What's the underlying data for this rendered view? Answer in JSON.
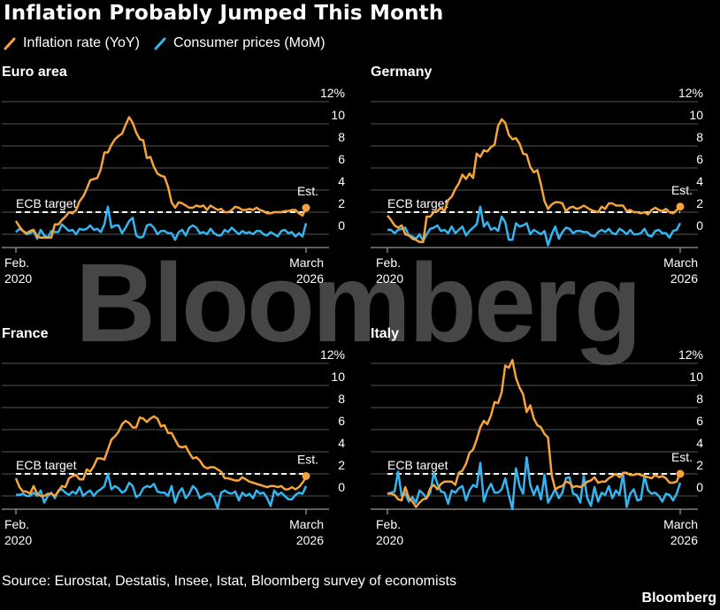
{
  "title": "Inflation Probably Jumped This Month",
  "legend": {
    "yoy": "Inflation rate (YoY)",
    "mom": "Consumer prices (MoM)"
  },
  "colors": {
    "yoy": "#f5a33a",
    "mom": "#35b5f0",
    "grid": "#555555",
    "target": "#ffffff"
  },
  "source": "Source: Eurostat, Destatis, Insee, Istat, Bloomberg survey of economists",
  "brand": "Bloomberg",
  "watermark": "Bloomberg",
  "chart_data": [
    {
      "type": "line",
      "title": "Euro area",
      "x_start_label": "Feb.\n2020",
      "x_end_label": "March\n2026",
      "ylim": [
        -2,
        12
      ],
      "yticks": [
        "12%",
        "10",
        "8",
        "6",
        "4",
        "2",
        "0"
      ],
      "target_label": "ECB target",
      "target_value": 2,
      "est_label": "Est.",
      "series": [
        {
          "name": "Inflation rate (YoY)",
          "values": [
            1.2,
            0.7,
            0.3,
            0.1,
            0.3,
            0.4,
            -0.2,
            -0.3,
            -0.3,
            -0.3,
            -0.3,
            0.9,
            0.9,
            1.3,
            1.6,
            2.0,
            1.9,
            2.2,
            3.0,
            3.4,
            4.1,
            4.9,
            5.0,
            5.1,
            5.9,
            7.4,
            7.4,
            8.1,
            8.6,
            8.9,
            9.1,
            9.9,
            10.6,
            10.1,
            9.2,
            8.6,
            8.5,
            6.9,
            7.0,
            6.1,
            5.5,
            5.3,
            5.2,
            4.3,
            2.9,
            2.4,
            2.9,
            2.8,
            2.6,
            2.4,
            2.4,
            2.6,
            2.5,
            2.6,
            2.2,
            2.6,
            2.4,
            2.2,
            2.3,
            2.0,
            2.0,
            2.2,
            2.5,
            2.4,
            2.2,
            2.2,
            2.3,
            2.2,
            2.4,
            2.2,
            2.1,
            1.9,
            1.9,
            2.0,
            2.0,
            2.0,
            2.1,
            2.1,
            2.2,
            2.2,
            1.9,
            1.7,
            2.4
          ]
        },
        {
          "name": "Consumer prices (MoM)",
          "values": [
            0.2,
            0.5,
            0.3,
            0.0,
            0.1,
            0.3,
            -0.4,
            0.4,
            -0.1,
            -0.3,
            0.3,
            0.2,
            0.2,
            0.9,
            0.6,
            0.3,
            0.4,
            0.0,
            0.5,
            0.4,
            0.5,
            0.8,
            0.4,
            0.5,
            0.2,
            0.9,
            2.5,
            0.6,
            0.8,
            0.8,
            0.1,
            0.6,
            1.2,
            1.5,
            -0.1,
            -0.3,
            -0.2,
            0.8,
            0.9,
            0.6,
            0.0,
            0.3,
            0.3,
            0.1,
            0.1,
            -0.5,
            0.2,
            0.4,
            -0.1,
            0.6,
            0.8,
            0.6,
            0.1,
            0.2,
            0.0,
            0.5,
            0.1,
            -0.1,
            -0.1,
            0.4,
            0.2,
            0.6,
            0.3,
            0.0,
            0.3,
            0.1,
            0.2,
            0.0,
            0.3,
            0.3,
            0.0,
            -0.1,
            0.2,
            0.0,
            -0.2,
            0.3,
            0.4,
            0.1,
            0.2,
            -0.2,
            0.1,
            -0.2,
            1.0
          ]
        }
      ],
      "est_value": 2.4
    },
    {
      "type": "line",
      "title": "Germany",
      "x_start_label": "Feb.\n2020",
      "x_end_label": "March\n2026",
      "ylim": [
        -2,
        12
      ],
      "yticks": [
        "12%",
        "10",
        "8",
        "6",
        "4",
        "2",
        "0"
      ],
      "target_label": "ECB target",
      "target_value": 2,
      "est_label": "Est.",
      "series": [
        {
          "name": "Inflation rate (YoY)",
          "values": [
            1.7,
            1.3,
            0.8,
            0.6,
            0.8,
            0.0,
            -0.1,
            -0.4,
            -0.5,
            -0.7,
            -0.7,
            1.6,
            1.6,
            2.0,
            2.1,
            2.4,
            2.1,
            3.1,
            3.4,
            4.1,
            4.6,
            5.4,
            5.0,
            5.5,
            5.1,
            7.3,
            7.0,
            7.6,
            7.5,
            7.9,
            8.1,
            9.8,
            10.4,
            10.1,
            9.0,
            8.6,
            8.7,
            8.2,
            7.3,
            7.2,
            6.1,
            5.6,
            5.8,
            4.5,
            3.0,
            2.3,
            2.7,
            2.9,
            2.9,
            2.8,
            2.1,
            2.4,
            2.5,
            2.3,
            2.4,
            2.6,
            2.4,
            2.2,
            2.1,
            2.0,
            2.5,
            2.3,
            2.8,
            2.8,
            2.6,
            2.6,
            2.6,
            2.1,
            2.2,
            2.0,
            2.0,
            1.9,
            2.0,
            1.8,
            2.2,
            2.4,
            2.2,
            2.1,
            2.3,
            2.0,
            1.9,
            2.2,
            2.3
          ]
        },
        {
          "name": "Consumer prices (MoM)",
          "values": [
            0.4,
            0.4,
            0.1,
            0.4,
            0.5,
            0.6,
            -0.1,
            -0.2,
            -0.4,
            0.0,
            -0.6,
            0.0,
            0.5,
            0.6,
            0.8,
            0.3,
            0.4,
            0.1,
            0.7,
            0.1,
            0.4,
            0.7,
            -0.1,
            0.3,
            0.6,
            0.9,
            2.5,
            0.7,
            1.1,
            0.4,
            0.6,
            0.3,
            1.6,
            1.1,
            -0.5,
            -0.5,
            1.0,
            0.7,
            0.8,
            1.0,
            0.0,
            0.4,
            0.2,
            0.0,
            0.3,
            -1.0,
            0.0,
            0.7,
            -0.4,
            0.2,
            0.6,
            0.5,
            0.1,
            0.3,
            0.3,
            0.2,
            0.2,
            -0.1,
            -0.2,
            0.2,
            0.4,
            0.2,
            0.5,
            0.1,
            0.0,
            0.5,
            0.3,
            0.0,
            0.4,
            0.0,
            0.0,
            0.1,
            0.5,
            -0.1,
            -0.2,
            0.3,
            0.4,
            0.1,
            0.1,
            -0.3,
            0.3,
            0.4,
            1.0
          ]
        }
      ],
      "est_value": 2.5
    },
    {
      "type": "line",
      "title": "France",
      "x_start_label": "Feb.\n2020",
      "x_end_label": "March\n2026",
      "ylim": [
        -2,
        12
      ],
      "yticks": [
        "12%",
        "10",
        "8",
        "6",
        "4",
        "2",
        "0"
      ],
      "target_label": "ECB target",
      "target_value": 2,
      "est_label": "Est.",
      "series": [
        {
          "name": "Inflation rate (YoY)",
          "values": [
            1.6,
            0.8,
            0.4,
            0.4,
            0.2,
            0.9,
            0.2,
            0.0,
            0.0,
            0.2,
            0.2,
            0.0,
            0.4,
            0.9,
            0.8,
            1.6,
            1.8,
            1.9,
            1.5,
            1.5,
            2.4,
            2.2,
            2.7,
            3.4,
            3.4,
            3.3,
            4.2,
            5.1,
            5.4,
            5.8,
            6.5,
            6.8,
            6.6,
            6.2,
            6.2,
            7.1,
            7.0,
            6.7,
            7.0,
            7.2,
            7.0,
            6.3,
            6.4,
            5.7,
            5.7,
            5.1,
            4.5,
            4.4,
            4.5,
            3.9,
            3.4,
            3.5,
            3.2,
            2.7,
            2.5,
            2.6,
            2.6,
            2.4,
            2.2,
            1.6,
            1.6,
            1.5,
            1.4,
            1.4,
            1.7,
            1.5,
            1.3,
            1.2,
            1.1,
            1.0,
            0.9,
            0.8,
            0.9,
            0.9,
            0.8,
            0.9,
            0.6,
            0.6,
            0.8,
            0.6,
            0.8,
            1.2,
            1.7
          ]
        },
        {
          "name": "Consumer prices (MoM)",
          "values": [
            0.1,
            0.1,
            0.2,
            0.0,
            0.0,
            0.3,
            0.0,
            0.5,
            -0.6,
            0.0,
            0.3,
            -0.2,
            0.5,
            0.6,
            0.3,
            0.1,
            0.4,
            0.2,
            0.8,
            0.0,
            0.3,
            0.5,
            0.0,
            0.4,
            0.6,
            0.9,
            2.0,
            0.6,
            0.9,
            0.7,
            0.3,
            0.5,
            1.2,
            0.9,
            -0.1,
            0.1,
            0.7,
            0.9,
            0.8,
            1.1,
            0.4,
            0.3,
            0.3,
            0.0,
            0.9,
            -0.6,
            0.3,
            0.7,
            -0.2,
            0.2,
            0.9,
            0.6,
            -0.2,
            0.0,
            0.2,
            0.2,
            -0.2,
            -1.1,
            0.3,
            0.5,
            0.3,
            0.2,
            0.4,
            -0.4,
            0.3,
            0.0,
            0.2,
            -0.2,
            0.5,
            0.2,
            0.3,
            -0.2,
            -0.9,
            0.5,
            0.1,
            0.3,
            0.0,
            -0.3,
            -0.3,
            0.1,
            0.3,
            0.2,
            0.9
          ]
        }
      ],
      "est_value": 1.8
    },
    {
      "type": "line",
      "title": "Italy",
      "x_start_label": "Feb.\n2020",
      "x_end_label": "March\n2026",
      "ylim": [
        -2,
        12
      ],
      "yticks": [
        "12%",
        "10",
        "8",
        "6",
        "4",
        "2",
        "0"
      ],
      "target_label": "ECB target",
      "target_value": 2,
      "est_label": "Est.",
      "series": [
        {
          "name": "Inflation rate (YoY)",
          "values": [
            0.2,
            0.2,
            0.1,
            -0.3,
            -0.4,
            0.8,
            -0.2,
            -0.5,
            -1.0,
            -0.6,
            -0.3,
            -0.2,
            0.7,
            1.0,
            0.6,
            1.1,
            1.3,
            1.3,
            1.3,
            1.0,
            2.1,
            2.3,
            2.9,
            3.9,
            4.2,
            5.1,
            6.2,
            6.8,
            6.5,
            7.3,
            8.5,
            8.4,
            9.4,
            11.8,
            11.6,
            12.3,
            10.7,
            9.8,
            9.2,
            7.6,
            8.2,
            7.0,
            6.4,
            6.2,
            5.6,
            5.3,
            1.9,
            0.6,
            0.8,
            0.9,
            1.3,
            1.2,
            0.8,
            0.9,
            0.8,
            1.0,
            1.3,
            1.4,
            1.7,
            1.2,
            1.3,
            1.3,
            1.6,
            1.8,
            2.0,
            1.7,
            2.1,
            2.1,
            1.9,
            1.9,
            2.0,
            1.9,
            1.8,
            1.7,
            1.6,
            1.9,
            1.7,
            1.8,
            1.6,
            1.2,
            1.2,
            1.3,
            2.1
          ]
        },
        {
          "name": "Consumer prices (MoM)",
          "values": [
            0.2,
            0.3,
            0.4,
            2.2,
            0.0,
            0.2,
            -0.5,
            -0.1,
            -0.6,
            0.5,
            0.2,
            -0.2,
            0.3,
            2.1,
            1.1,
            0.4,
            0.3,
            -0.7,
            0.5,
            0.3,
            0.7,
            0.9,
            -0.4,
            0.5,
            1.0,
            0.8,
            3.0,
            -0.5,
            0.5,
            1.1,
            0.3,
            0.3,
            0.6,
            1.6,
            0.1,
            -1.2,
            2.5,
            0.9,
            0.2,
            3.5,
            1.0,
            0.1,
            0.9,
            -0.3,
            1.9,
            -0.6,
            0.0,
            0.6,
            -0.2,
            0.3,
            1.6,
            1.7,
            0.2,
            0.1,
            -0.6,
            1.8,
            -0.2,
            -0.9,
            0.8,
            -0.5,
            0.3,
            0.1,
            0.9,
            -0.2,
            0.5,
            0.1,
            2.0,
            -1.0,
            0.2,
            0.6,
            -0.4,
            -0.3,
            1.8,
            0.5,
            0.2,
            0.3,
            0.0,
            -0.5,
            0.2,
            0.1,
            -0.4,
            0.2,
            1.2
          ]
        }
      ],
      "est_value": 2.0
    }
  ]
}
